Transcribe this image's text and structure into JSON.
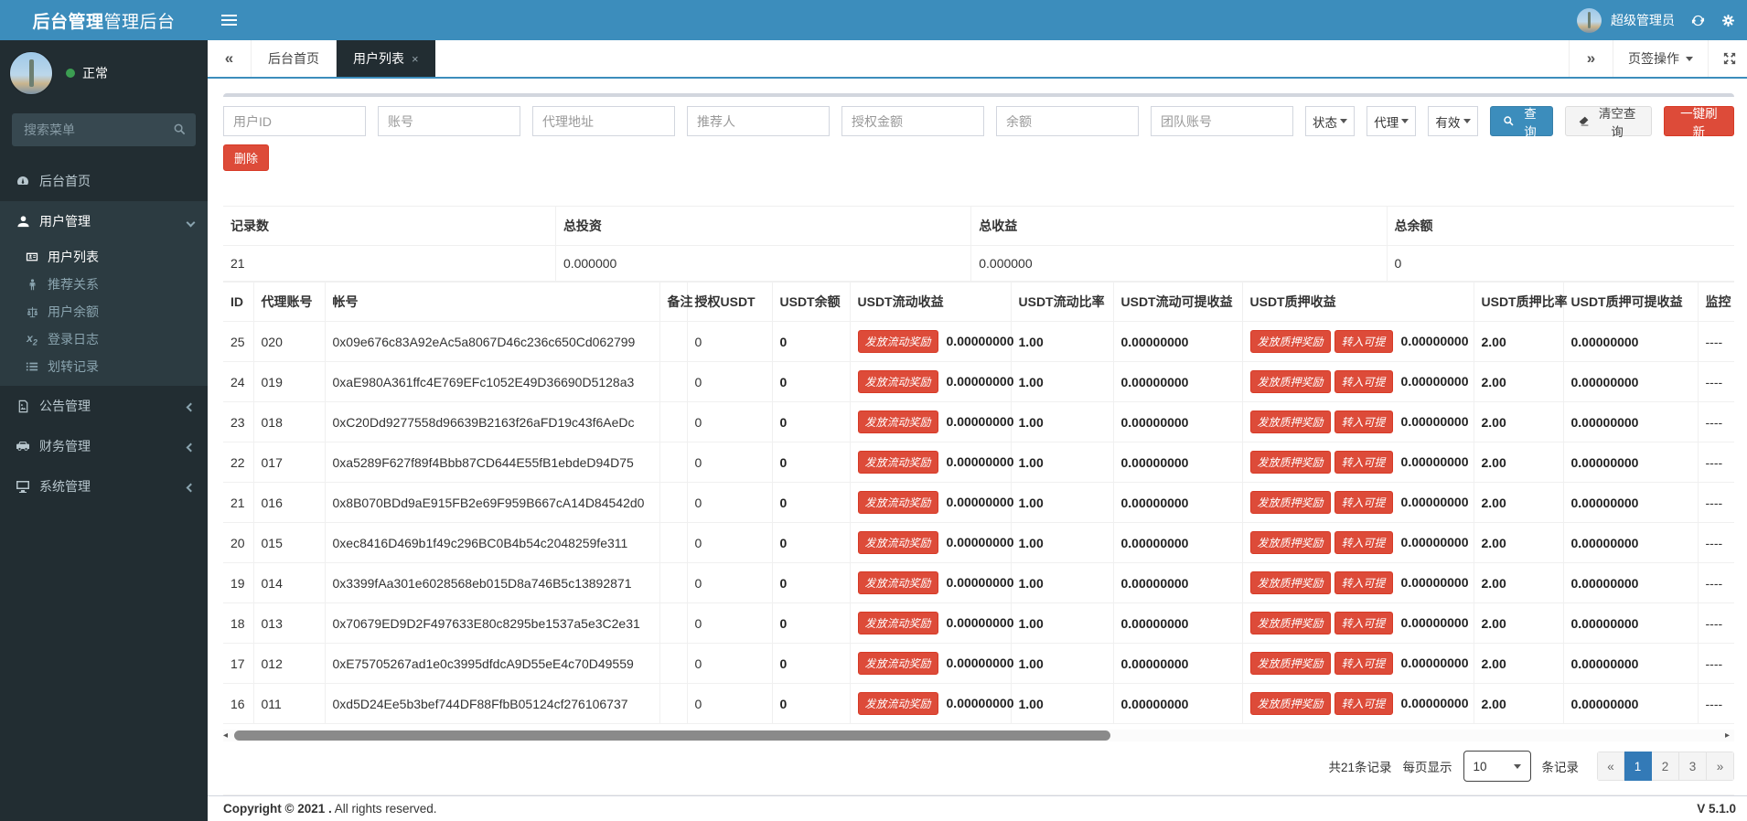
{
  "brand": {
    "bold": "后台管理",
    "light": "管理后台"
  },
  "header": {
    "username": "超级管理员"
  },
  "sidebar": {
    "status": "正常",
    "search_placeholder": "搜索菜单",
    "menu": [
      {
        "label": "后台首页"
      },
      {
        "label": "用户管理"
      },
      {
        "label": "公告管理"
      },
      {
        "label": "财务管理"
      },
      {
        "label": "系统管理"
      }
    ],
    "submenu": [
      {
        "label": "用户列表"
      },
      {
        "label": "推荐关系"
      },
      {
        "label": "用户余额"
      },
      {
        "label": "登录日志"
      },
      {
        "label": "划转记录"
      }
    ]
  },
  "tabs": {
    "home": "后台首页",
    "current": "用户列表",
    "close": "×",
    "left_arrow": "«",
    "right_arrow": "»",
    "actions_label": "页签操作"
  },
  "filters": {
    "inputs": [
      "用户ID",
      "账号",
      "代理地址",
      "推荐人",
      "授权金额",
      "余额",
      "团队账号"
    ],
    "selects": [
      "状态",
      "代理",
      "有效"
    ],
    "search_btn": "查询",
    "clear_btn": "清空查询",
    "refresh_btn": "一键刷新",
    "delete_btn": "删除"
  },
  "summary": {
    "headers": [
      "记录数",
      "总投资",
      "总收益",
      "总余额"
    ],
    "values": [
      "21",
      "0.000000",
      "0.000000",
      "0"
    ]
  },
  "table": {
    "headers": [
      "ID",
      "代理账号",
      "帐号",
      "备注",
      "授权USDT",
      "USDT余额",
      "USDT流动收益",
      "USDT流动比率",
      "USDT流动可提收益",
      "USDT质押收益",
      "USDT质押比率",
      "USDT质押可提收益",
      "监控"
    ],
    "buttons": {
      "flow": "发放流动奖励",
      "pledge": "发放质押奖励",
      "transfer": "转入可提"
    },
    "rows": [
      {
        "id": "25",
        "agent": "020",
        "account": "0x09e676c83A92eAc5a8067D46c236c650Cd062799",
        "note": "",
        "auth": "0",
        "balance": "0",
        "flow_income": "0.00000000",
        "flow_rate": "1.00",
        "flow_withdraw": "0.00000000",
        "pledge_income": "0.00000000",
        "pledge_rate": "2.00",
        "pledge_withdraw": "0.00000000",
        "monitor": "----"
      },
      {
        "id": "24",
        "agent": "019",
        "account": "0xaE980A361ffc4E769EFc1052E49D36690D5128a3",
        "note": "",
        "auth": "0",
        "balance": "0",
        "flow_income": "0.00000000",
        "flow_rate": "1.00",
        "flow_withdraw": "0.00000000",
        "pledge_income": "0.00000000",
        "pledge_rate": "2.00",
        "pledge_withdraw": "0.00000000",
        "monitor": "----"
      },
      {
        "id": "23",
        "agent": "018",
        "account": "0xC20Dd9277558d96639B2163f26aFD19c43f6AeDc",
        "note": "",
        "auth": "0",
        "balance": "0",
        "flow_income": "0.00000000",
        "flow_rate": "1.00",
        "flow_withdraw": "0.00000000",
        "pledge_income": "0.00000000",
        "pledge_rate": "2.00",
        "pledge_withdraw": "0.00000000",
        "monitor": "----"
      },
      {
        "id": "22",
        "agent": "017",
        "account": "0xa5289F627f89f4Bbb87CD644E55fB1ebdeD94D75",
        "note": "",
        "auth": "0",
        "balance": "0",
        "flow_income": "0.00000000",
        "flow_rate": "1.00",
        "flow_withdraw": "0.00000000",
        "pledge_income": "0.00000000",
        "pledge_rate": "2.00",
        "pledge_withdraw": "0.00000000",
        "monitor": "----"
      },
      {
        "id": "21",
        "agent": "016",
        "account": "0x8B070BDd9aE915FB2e69F959B667cA14D84542d0",
        "note": "",
        "auth": "0",
        "balance": "0",
        "flow_income": "0.00000000",
        "flow_rate": "1.00",
        "flow_withdraw": "0.00000000",
        "pledge_income": "0.00000000",
        "pledge_rate": "2.00",
        "pledge_withdraw": "0.00000000",
        "monitor": "----"
      },
      {
        "id": "20",
        "agent": "015",
        "account": "0xec8416D469b1f49c296BC0B4b54c2048259fe311",
        "note": "",
        "auth": "0",
        "balance": "0",
        "flow_income": "0.00000000",
        "flow_rate": "1.00",
        "flow_withdraw": "0.00000000",
        "pledge_income": "0.00000000",
        "pledge_rate": "2.00",
        "pledge_withdraw": "0.00000000",
        "monitor": "----"
      },
      {
        "id": "19",
        "agent": "014",
        "account": "0x3399fAa301e6028568eb015D8a746B5c13892871",
        "note": "",
        "auth": "0",
        "balance": "0",
        "flow_income": "0.00000000",
        "flow_rate": "1.00",
        "flow_withdraw": "0.00000000",
        "pledge_income": "0.00000000",
        "pledge_rate": "2.00",
        "pledge_withdraw": "0.00000000",
        "monitor": "----"
      },
      {
        "id": "18",
        "agent": "013",
        "account": "0x70679ED9D2F497633E80c8295be1537a5e3C2e31",
        "note": "",
        "auth": "0",
        "balance": "0",
        "flow_income": "0.00000000",
        "flow_rate": "1.00",
        "flow_withdraw": "0.00000000",
        "pledge_income": "0.00000000",
        "pledge_rate": "2.00",
        "pledge_withdraw": "0.00000000",
        "monitor": "----"
      },
      {
        "id": "17",
        "agent": "012",
        "account": "0xE75705267ad1e0c3995dfdcA9D55eE4c70D49559",
        "note": "",
        "auth": "0",
        "balance": "0",
        "flow_income": "0.00000000",
        "flow_rate": "1.00",
        "flow_withdraw": "0.00000000",
        "pledge_income": "0.00000000",
        "pledge_rate": "2.00",
        "pledge_withdraw": "0.00000000",
        "monitor": "----"
      },
      {
        "id": "16",
        "agent": "011",
        "account": "0xd5D24Ee5b3bef744DF88FfbB05124cf276106737",
        "note": "",
        "auth": "0",
        "balance": "0",
        "flow_income": "0.00000000",
        "flow_rate": "1.00",
        "flow_withdraw": "0.00000000",
        "pledge_income": "0.00000000",
        "pledge_rate": "2.00",
        "pledge_withdraw": "0.00000000",
        "monitor": "----"
      }
    ]
  },
  "pagination": {
    "total_text": "共21条记录",
    "per_page_label": "每页显示",
    "per_page": "10",
    "suffix": "条记录",
    "pages": [
      "«",
      "1",
      "2",
      "3",
      "»"
    ]
  },
  "footer": {
    "copyright_strong": "Copyright © 2021 .",
    "copyright_rest": "All rights reserved.",
    "version": "V 5.1.0"
  }
}
